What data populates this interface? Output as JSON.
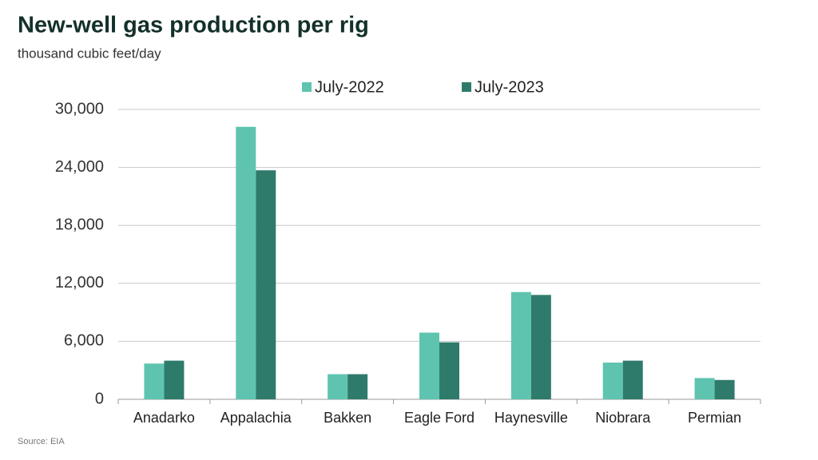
{
  "chart_data": {
    "type": "bar",
    "title": "New-well gas production per rig",
    "subtitle": "thousand cubic feet/day",
    "source": "Source: EIA",
    "categories": [
      "Anadarko",
      "Appalachia",
      "Bakken",
      "Eagle Ford",
      "Haynesville",
      "Niobrara",
      "Permian"
    ],
    "series": [
      {
        "name": "July-2022",
        "color": "#5ec4b0",
        "values": [
          3700,
          28200,
          2600,
          6900,
          11100,
          3800,
          2200
        ]
      },
      {
        "name": "July-2023",
        "color": "#2f7b6b",
        "values": [
          4000,
          23700,
          2600,
          5900,
          10800,
          4000,
          2000
        ]
      }
    ],
    "ylim": [
      0,
      30000
    ],
    "yticks": [
      0,
      {
        "value": 6000,
        "label": "6,000"
      },
      {
        "value": 12000,
        "label": "12,000"
      },
      {
        "value": 18000,
        "label": "18,000"
      },
      {
        "value": 24000,
        "label": "24,000"
      },
      {
        "value": 30000,
        "label": "30,000"
      }
    ],
    "grid": true,
    "legend": "top"
  }
}
